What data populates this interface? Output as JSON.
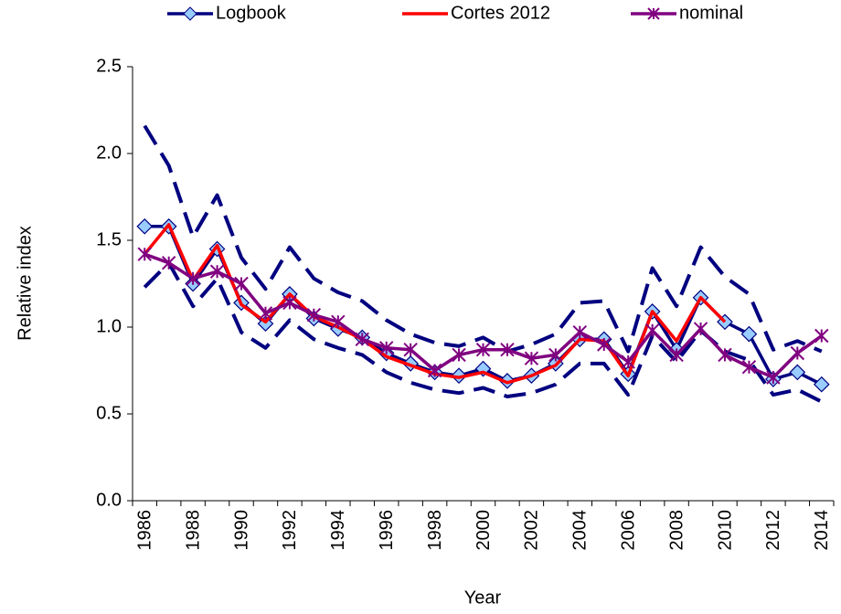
{
  "chart_data": {
    "type": "line",
    "x_label": "Year",
    "y_label": "Relative index",
    "categories": [
      "1986",
      null,
      "1988",
      null,
      "1990",
      null,
      "1992",
      null,
      "1994",
      null,
      "1996",
      null,
      "1998",
      null,
      "2000",
      null,
      "2002",
      null,
      "2004",
      null,
      "2006",
      null,
      "2008",
      null,
      "2010",
      null,
      "2012",
      null,
      "2014"
    ],
    "ylim": [
      0,
      2.5
    ],
    "yticks": [
      {
        "value": 0,
        "label": "0.0"
      },
      0.5,
      {
        "value": 1,
        "label": "1.0"
      },
      1.5,
      {
        "value": 2,
        "label": "2.0"
      },
      2.5
    ],
    "grid": false,
    "legend": "top",
    "series": [
      {
        "name": "Logbook",
        "color": "#000080",
        "marker": "diamond",
        "marker_color": "#99ccff",
        "values": [
          1.58,
          1.58,
          1.25,
          1.45,
          1.14,
          1.02,
          1.19,
          1.05,
          0.99,
          0.94,
          0.85,
          0.79,
          0.74,
          0.72,
          0.76,
          0.69,
          0.72,
          0.79,
          0.93,
          0.93,
          0.73,
          1.09,
          0.87,
          1.17,
          1.03,
          0.96,
          0.7,
          0.74,
          0.67
        ]
      },
      {
        "color": "#000080",
        "dashed": true,
        "values": [
          2.16,
          1.93,
          1.52,
          1.76,
          1.4,
          1.22,
          1.46,
          1.28,
          1.2,
          1.15,
          1.04,
          0.96,
          0.91,
          0.89,
          0.94,
          0.86,
          0.9,
          0.96,
          1.14,
          1.15,
          0.86,
          1.34,
          1.12,
          1.46,
          1.29,
          1.19,
          0.87,
          0.92,
          0.86
        ]
      },
      {
        "color": "#000080",
        "dashed": true,
        "values": [
          1.23,
          1.37,
          1.12,
          1.28,
          0.97,
          0.88,
          1.04,
          0.93,
          0.88,
          0.84,
          0.74,
          0.68,
          0.64,
          0.62,
          0.65,
          0.6,
          0.62,
          0.67,
          0.79,
          0.79,
          0.61,
          0.95,
          0.8,
          0.98,
          0.86,
          0.81,
          0.61,
          0.64,
          0.57
        ]
      },
      {
        "name": "Cortes 2012",
        "color": "#ff0000",
        "values": [
          1.42,
          1.59,
          1.27,
          1.47,
          1.13,
          1.03,
          1.19,
          1.06,
          1.0,
          0.93,
          0.83,
          0.78,
          0.73,
          0.71,
          0.74,
          0.68,
          0.72,
          0.78,
          0.93,
          0.92,
          0.72,
          1.09,
          0.92,
          1.17,
          1.03,
          null,
          null,
          null,
          null
        ]
      },
      {
        "name": "nominal",
        "color": "#800080",
        "marker": "asterisk",
        "values": [
          1.42,
          1.37,
          1.28,
          1.32,
          1.25,
          1.08,
          1.14,
          1.07,
          1.03,
          0.93,
          0.88,
          0.87,
          0.75,
          0.84,
          0.87,
          0.87,
          0.82,
          0.84,
          0.97,
          0.9,
          0.8,
          0.98,
          0.84,
          0.99,
          0.84,
          0.77,
          0.71,
          0.85,
          0.95
        ]
      }
    ]
  }
}
